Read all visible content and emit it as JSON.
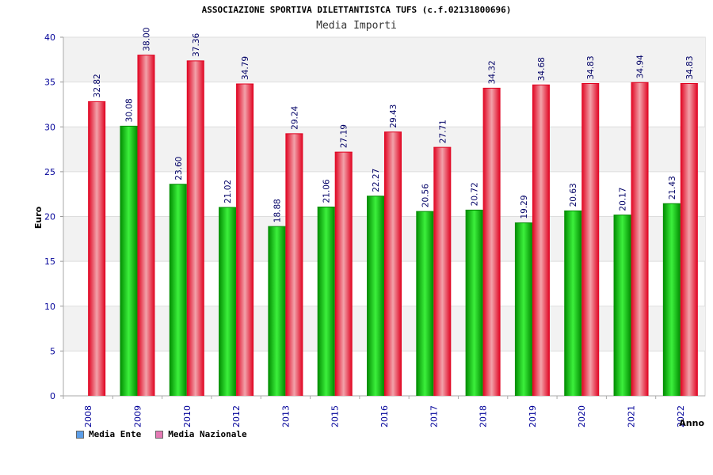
{
  "colors": {
    "ente_dark": "#008a00",
    "ente_light": "#3cf03c",
    "naz_dark": "#e0001e",
    "naz_light": "#f2a2aa",
    "axis_text": "#000099",
    "label_text": "#000066",
    "band": "#f2f2f2",
    "legend_ente": "#5c9ee8",
    "legend_naz": "#e47ab4"
  },
  "chart_data": {
    "type": "bar",
    "title": "ASSOCIAZIONE SPORTIVA DILETTANTISTCA TUFS (c.f.02131800696)",
    "subtitle": "Media Importi",
    "xlabel": "Anno",
    "ylabel": "Euro",
    "ylim": [
      0,
      40
    ],
    "yticks": [
      "0",
      "5",
      "10",
      "15",
      "20",
      "25",
      "30",
      "35",
      "40"
    ],
    "grid": true,
    "legend_position": "bottom-left",
    "categories": [
      "2008",
      "2009",
      "2010",
      "2012",
      "2013",
      "2015",
      "2016",
      "2017",
      "2018",
      "2019",
      "2020",
      "2021",
      "2022"
    ],
    "series": [
      {
        "name": "Media Ente",
        "values": [
          null,
          30.08,
          23.6,
          21.02,
          18.88,
          21.06,
          22.27,
          20.56,
          20.72,
          19.29,
          20.63,
          20.17,
          21.43
        ],
        "labels": [
          "",
          "30.08",
          "23.60",
          "21.02",
          "18.88",
          "21.06",
          "22.27",
          "20.56",
          "20.72",
          "19.29",
          "20.63",
          "20.17",
          "21.43"
        ]
      },
      {
        "name": "Media Nazionale",
        "values": [
          32.82,
          38.0,
          37.36,
          34.79,
          29.24,
          27.19,
          29.43,
          27.71,
          34.32,
          34.68,
          34.83,
          34.94,
          34.83
        ],
        "labels": [
          "32.82",
          "38.00",
          "37.36",
          "34.79",
          "29.24",
          "27.19",
          "29.43",
          "27.71",
          "34.32",
          "34.68",
          "34.83",
          "34.94",
          "34.83"
        ]
      }
    ]
  }
}
